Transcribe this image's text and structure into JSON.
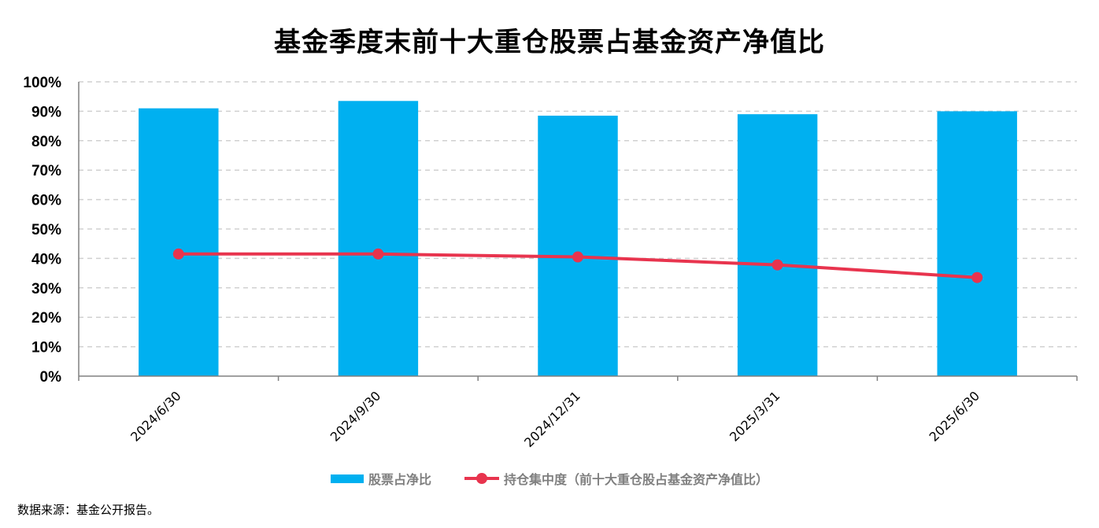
{
  "chart_data": {
    "type": "bar",
    "title": "基金季度末前十大重仓股票占基金资产净值比",
    "categories": [
      "2024/6/30",
      "2024/9/30",
      "2024/12/31",
      "2025/3/31",
      "2025/6/30"
    ],
    "series": [
      {
        "name": "股票占净比",
        "type": "bar",
        "color": "#00b0f0",
        "values": [
          91,
          93.5,
          88.5,
          89,
          90
        ]
      },
      {
        "name": "持仓集中度（前十大重仓股占基金资产净值比）",
        "type": "line",
        "color": "#e8344e",
        "values": [
          41.5,
          41.5,
          40.5,
          37.8,
          33.5
        ]
      }
    ],
    "yticks": [
      "0%",
      "10%",
      "20%",
      "30%",
      "40%",
      "50%",
      "60%",
      "70%",
      "80%",
      "90%",
      "100%"
    ],
    "ylim": [
      0,
      100
    ],
    "grid": "horizontal dashed",
    "legend_position": "bottom"
  },
  "source_note": "数据来源：基金公开报告。"
}
